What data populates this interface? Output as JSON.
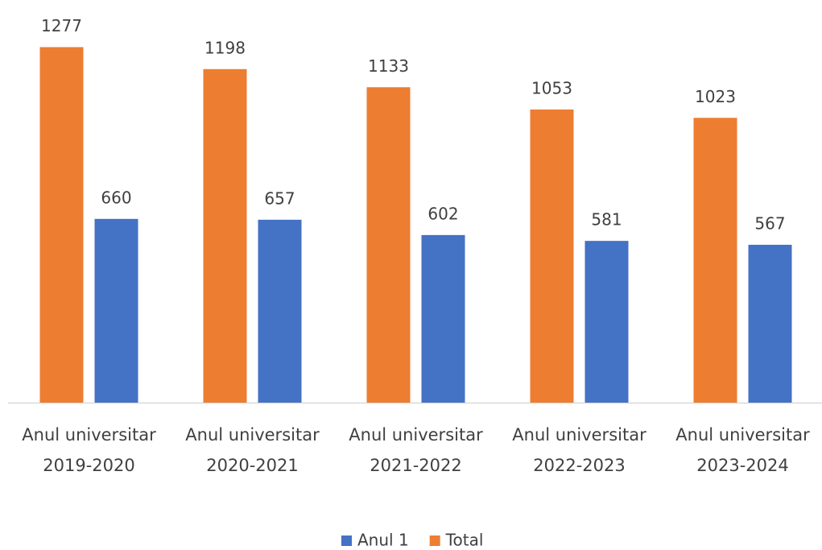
{
  "chart_data": {
    "type": "bar",
    "categories": [
      "Anul universitar 2019-2020",
      "Anul universitar 2020-2021",
      "Anul universitar 2021-2022",
      "Anul universitar 2022-2023",
      "Anul universitar 2023-2024"
    ],
    "series": [
      {
        "name": "Anul 1",
        "color": "#4472c4",
        "values": [
          660,
          657,
          602,
          581,
          567
        ]
      },
      {
        "name": "Total",
        "color": "#ed7d31",
        "values": [
          1277,
          1198,
          1133,
          1053,
          1023
        ]
      }
    ],
    "ylim": [
      0,
      1400
    ]
  }
}
